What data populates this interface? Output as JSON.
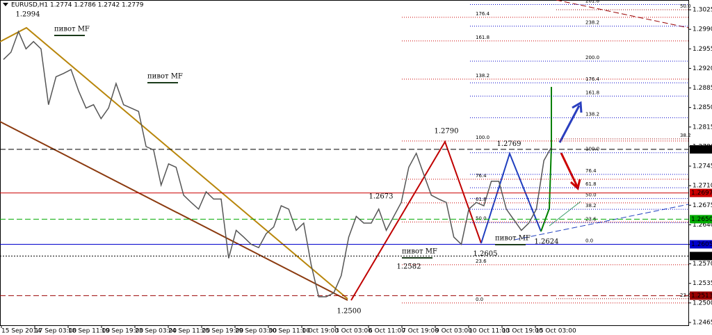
{
  "chart_data": {
    "type": "line",
    "title": "EURUSD,H1  1.2774 1.2786 1.2742 1.2779",
    "color": "#555555",
    "values": [
      1.2936,
      1.2949,
      1.2986,
      1.2955,
      1.2968,
      1.2955,
      1.2855,
      1.2905,
      1.2911,
      1.2918,
      1.288,
      1.2849,
      1.2855,
      1.283,
      1.2849,
      1.2893,
      1.2855,
      1.2849,
      1.2843,
      1.278,
      1.2774,
      1.2711,
      1.2749,
      1.2743,
      1.2693,
      1.268,
      1.2668,
      1.2699,
      1.2686,
      1.2686,
      1.258,
      1.263,
      1.2618,
      1.2605,
      1.2599,
      1.2624,
      1.2636,
      1.2674,
      1.2668,
      1.263,
      1.2643,
      1.2568,
      1.2511,
      1.2511,
      1.2518,
      1.2549,
      1.2618,
      1.2655,
      1.2643,
      1.2643,
      1.2668,
      1.263,
      1.2655,
      1.268,
      1.2743,
      1.2768,
      1.273,
      1.2693,
      1.2686,
      1.268,
      1.2618,
      1.2605,
      1.2668,
      1.268,
      1.2674,
      1.2718,
      1.2718,
      1.2668,
      1.2649,
      1.263,
      1.2643,
      1.2668,
      1.2755,
      1.2779
    ],
    "xticks": [
      "15 Sep 2014",
      "17 Sep 03:00",
      "18 Sep 11:00",
      "19 Sep 19:00",
      "23 Sep 03:00",
      "24 Sep 11:00",
      "25 Sep 19:00",
      "29 Sep 03:00",
      "30 Sep 11:00",
      "1 Oct 19:00",
      "3 Oct 03:00",
      "6 Oct 11:00",
      "7 Oct 19:00",
      "9 Oct 03:00",
      "10 Oct 11:00",
      "13 Oct 19:00",
      "15 Oct 03:00"
    ],
    "ylim": [
      1.246,
      1.30425
    ],
    "yticks": [
      1.2465,
      {
        "value": 1.25,
        "label": "1.2500"
      },
      1.2535,
      {
        "value": 1.257,
        "label": "1.2570"
      },
      1.2605,
      {
        "value": 1.264,
        "label": "1.2640"
      },
      1.2675,
      {
        "value": 1.271,
        "label": "1.2710"
      },
      1.2745,
      {
        "value": 1.278,
        "label": "1.2780"
      },
      1.2815,
      {
        "value": 1.285,
        "label": "1.2850"
      },
      1.2885,
      {
        "value": 1.292,
        "label": "1.2920"
      },
      1.2955,
      {
        "value": 1.299,
        "label": "1.2990"
      },
      1.3025
    ],
    "levels": [
      {
        "price": 1.2775,
        "color": "#000000",
        "dash": "8 4"
      },
      {
        "price": 1.2697,
        "color": "#cc0000",
        "dash": "none"
      },
      {
        "price": {
          "value": 1.265,
          "label": "1.2650"
        },
        "color": "#00aa00",
        "dash": "8 4"
      },
      {
        "price": 1.2605,
        "color": "#0000cc",
        "dash": "none"
      },
      {
        "price": 1.2584,
        "color": "#000000",
        "dash": "2 2"
      },
      {
        "price": 1.2513,
        "color": "#990000",
        "dash": "8 4"
      }
    ],
    "annotations": [
      1.2994,
      {
        "value": 1.279,
        "label": "1.2790"
      },
      1.2769,
      1.2673,
      1.2624,
      1.2605,
      1.2582,
      {
        "value": 1.25,
        "label": "1.2500"
      }
    ],
    "pivots": [
      "пивот MF",
      "пивот MF",
      "пивот MF",
      "пивот MF"
    ],
    "fibs": [
      {
        "color": "#cc0000",
        "from": 1.25,
        "to": 1.279,
        "levels": [
          {
            "value": 0,
            "label": "0.0"
          },
          23.6,
          {
            "value": 50,
            "label": "50.0"
          },
          61.8,
          76.4,
          {
            "value": 100,
            "label": "100.0"
          },
          138.2,
          161.8,
          176.4
        ]
      },
      {
        "color": "#0000cc",
        "from": 1.2605,
        "to": 1.2769,
        "levels": [
          {
            "value": 0,
            "label": "0.0"
          },
          23.6,
          38.2,
          {
            "value": 50,
            "label": "50.0"
          },
          61.8,
          76.4,
          {
            "value": 100,
            "label": "100.0"
          },
          138.2,
          161.8,
          176.4,
          {
            "value": 200,
            "label": "200.0"
          },
          238.2,
          261.8
        ]
      },
      {
        "color": "#990000",
        "from": 1.2045,
        "to": 1.4005,
        "levels": [
          23.6,
          38.2,
          {
            "value": 50,
            "label": "50.0"
          }
        ]
      }
    ]
  }
}
